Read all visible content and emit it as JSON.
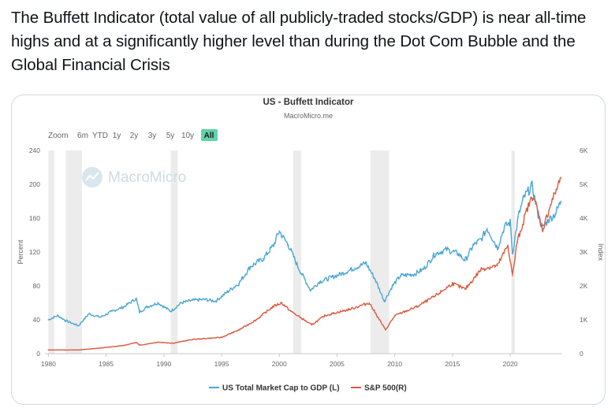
{
  "post": {
    "text": "The Buffett Indicator (total value of all publicly-traded stocks/GDP) is near all-time highs and at a significantly higher level than during the Dot Com Bubble and the Global Financial Crisis"
  },
  "toolbar": {
    "zoom_label": "Zoom",
    "buttons": [
      "6m",
      "YTD",
      "1y",
      "2y",
      "3y",
      "5y",
      "10y",
      "All"
    ],
    "active": "All"
  },
  "watermark": "MacroMicro",
  "colors": {
    "market_cap_gdp": "#4aa6d4",
    "sp500": "#d9593e",
    "recession_band": "#ececec",
    "active_button": "#5fd4a8"
  },
  "chart_data": {
    "type": "line",
    "title": "US - Buffett Indicator",
    "subtitle": "MacroMicro.me",
    "ylabel_left": "Percent",
    "ylabel_right": "Index",
    "xlim": [
      1979.7,
      2024.5
    ],
    "ylim_left": [
      0,
      240
    ],
    "ylim_right": [
      0,
      6000
    ],
    "x_ticks": [
      1980,
      1985,
      1990,
      1995,
      2000,
      2005,
      2010,
      2015,
      2020
    ],
    "y_ticks_left": [
      "0",
      "40",
      "80",
      "120",
      "160",
      "200",
      "240"
    ],
    "y_ticks_right": [
      "0",
      "1K",
      "2K",
      "3K",
      "4K",
      "5K",
      "6K"
    ],
    "y_tick_values_left": [
      0,
      40,
      80,
      120,
      160,
      200,
      240
    ],
    "y_tick_values_right": [
      0,
      1000,
      2000,
      3000,
      4000,
      5000,
      6000
    ],
    "recessions": [
      [
        1980.0,
        1980.5
      ],
      [
        1981.5,
        1982.9
      ],
      [
        1990.6,
        1991.2
      ],
      [
        2001.2,
        2001.9
      ],
      [
        2007.9,
        2009.5
      ],
      [
        2020.1,
        2020.4
      ]
    ],
    "legend_position": "bottom-center",
    "series": [
      {
        "name": "US Total Market Cap to GDP (L)",
        "axis": "left",
        "x": [
          1980.0,
          1980.8,
          1981.5,
          1982.6,
          1983.5,
          1984.5,
          1985.5,
          1986.5,
          1987.6,
          1987.9,
          1988.5,
          1989.5,
          1990.6,
          1991.5,
          1992.5,
          1993.5,
          1994.5,
          1995.5,
          1996.5,
          1997.5,
          1998.6,
          1999.5,
          2000.0,
          2000.2,
          2000.8,
          2001.6,
          2002.7,
          2003.5,
          2004.5,
          2005.5,
          2006.5,
          2007.5,
          2008.3,
          2009.1,
          2009.8,
          2010.5,
          2011.7,
          2012.5,
          2013.5,
          2014.5,
          2015.5,
          2016.1,
          2016.8,
          2017.5,
          2018.0,
          2018.9,
          2019.5,
          2020.0,
          2020.2,
          2020.7,
          2021.2,
          2021.9,
          2022.4,
          2022.8,
          2023.3,
          2023.9,
          2024.4
        ],
        "values": [
          40,
          45,
          39,
          33,
          47,
          43,
          50,
          55,
          65,
          49,
          55,
          60,
          50,
          60,
          63,
          64,
          62,
          73,
          83,
          103,
          112,
          128,
          145,
          140,
          128,
          103,
          75,
          85,
          90,
          95,
          101,
          107,
          88,
          62,
          80,
          92,
          94,
          100,
          118,
          123,
          118,
          110,
          128,
          135,
          148,
          125,
          150,
          155,
          118,
          162,
          185,
          198,
          165,
          148,
          158,
          165,
          180
        ]
      },
      {
        "name": "S&P 500(R)",
        "axis": "right",
        "x": [
          1980.0,
          1982.6,
          1984.5,
          1986.5,
          1987.6,
          1987.9,
          1989.5,
          1990.8,
          1992.5,
          1995.0,
          1996.5,
          1998.0,
          1999.5,
          2000.2,
          2001.0,
          2002.8,
          2004.0,
          2006.0,
          2007.8,
          2009.2,
          2010.0,
          2012.0,
          2013.5,
          2015.0,
          2016.1,
          2017.5,
          2018.9,
          2019.8,
          2020.2,
          2020.6,
          2021.5,
          2022.0,
          2022.8,
          2023.5,
          2024.4
        ],
        "values": [
          110,
          110,
          165,
          240,
          330,
          250,
          340,
          310,
          420,
          480,
          700,
          1000,
          1400,
          1500,
          1250,
          850,
          1130,
          1300,
          1500,
          700,
          1120,
          1400,
          1700,
          2070,
          1900,
          2500,
          2600,
          3200,
          2300,
          3300,
          4300,
          4700,
          3650,
          4400,
          5200
        ]
      }
    ]
  }
}
